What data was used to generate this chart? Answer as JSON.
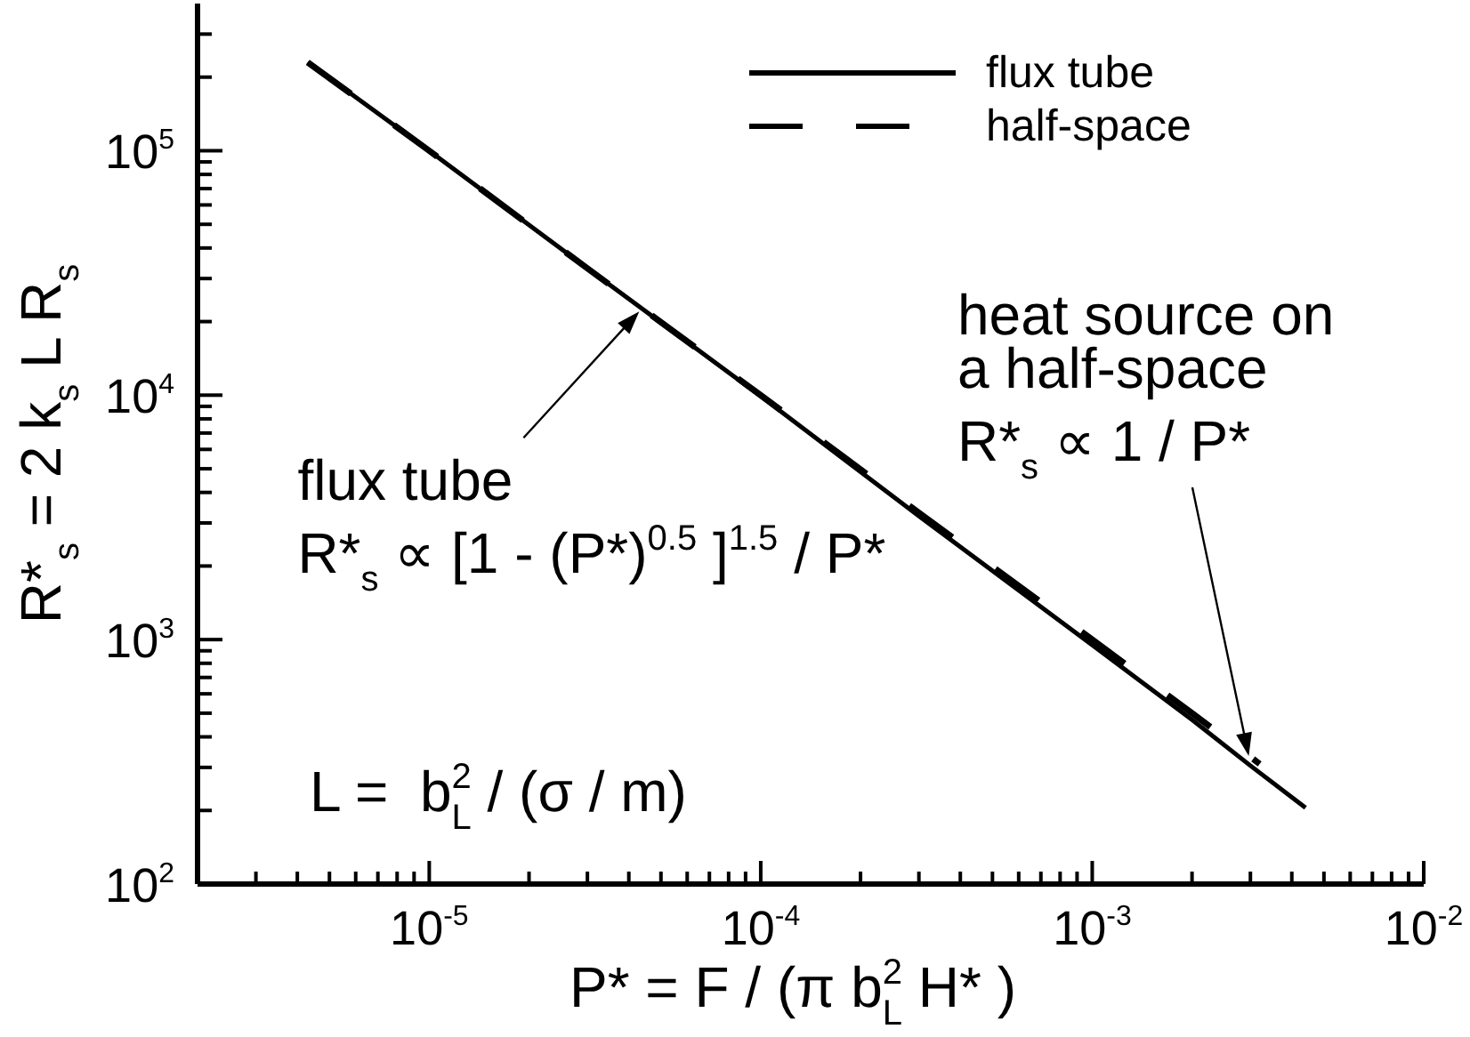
{
  "chart_data": {
    "type": "line",
    "xlabel": "P* = F / (π b$^{2}$$_{L}$ H* )",
    "ylabel": "R*$_{s}$ = 2 k$_{s}$ L R$_{s}$",
    "log": "xy",
    "xlim": [
      2e-06,
      0.01
    ],
    "ylim": [
      100,
      400000
    ],
    "xticks": [
      {
        "value": 3e-06,
        "label": null
      },
      {
        "value": 4e-06,
        "label": null
      },
      {
        "value": 5e-06,
        "label": null
      },
      {
        "value": 6e-06,
        "label": null
      },
      {
        "value": 7e-06,
        "label": null
      },
      {
        "value": 8e-06,
        "label": null
      },
      {
        "value": 9e-06,
        "label": null
      },
      {
        "value": 1e-05,
        "label": "10$^{-5}$"
      },
      {
        "value": 2e-05,
        "label": null
      },
      {
        "value": 3e-05,
        "label": null
      },
      {
        "value": 4e-05,
        "label": null
      },
      {
        "value": 5e-05,
        "label": null
      },
      {
        "value": 6e-05,
        "label": null
      },
      {
        "value": 7e-05,
        "label": null
      },
      {
        "value": 8e-05,
        "label": null
      },
      {
        "value": 9e-05,
        "label": null
      },
      {
        "value": 0.0001,
        "label": "10$^{-4}$"
      },
      {
        "value": 0.0002,
        "label": null
      },
      {
        "value": 0.0003,
        "label": null
      },
      {
        "value": 0.0004,
        "label": null
      },
      {
        "value": 0.0005,
        "label": null
      },
      {
        "value": 0.0006,
        "label": null
      },
      {
        "value": 0.0007,
        "label": null
      },
      {
        "value": 0.0008,
        "label": null
      },
      {
        "value": 0.0009,
        "label": null
      },
      {
        "value": 0.001,
        "label": "10$^{-3}$"
      },
      {
        "value": 0.002,
        "label": null
      },
      {
        "value": 0.003,
        "label": null
      },
      {
        "value": 0.004,
        "label": null
      },
      {
        "value": 0.005,
        "label": null
      },
      {
        "value": 0.006,
        "label": null
      },
      {
        "value": 0.007,
        "label": null
      },
      {
        "value": 0.008,
        "label": null
      },
      {
        "value": 0.009,
        "label": null
      },
      {
        "value": 0.01,
        "label": "10$^{-2}$"
      }
    ],
    "yticks": [
      {
        "value": 100,
        "label": "10$^{2}$"
      },
      {
        "value": 200,
        "label": null
      },
      {
        "value": 300,
        "label": null
      },
      {
        "value": 400,
        "label": null
      },
      {
        "value": 500,
        "label": null
      },
      {
        "value": 600,
        "label": null
      },
      {
        "value": 700,
        "label": null
      },
      {
        "value": 800,
        "label": null
      },
      {
        "value": 900,
        "label": null
      },
      {
        "value": 1000,
        "label": "10$^{3}$"
      },
      {
        "value": 2000,
        "label": null
      },
      {
        "value": 3000,
        "label": null
      },
      {
        "value": 4000,
        "label": null
      },
      {
        "value": 5000,
        "label": null
      },
      {
        "value": 6000,
        "label": null
      },
      {
        "value": 7000,
        "label": null
      },
      {
        "value": 8000,
        "label": null
      },
      {
        "value": 9000,
        "label": null
      },
      {
        "value": 10000,
        "label": "10$^{4}$"
      },
      {
        "value": 20000,
        "label": null
      },
      {
        "value": 30000,
        "label": null
      },
      {
        "value": 40000,
        "label": null
      },
      {
        "value": 50000,
        "label": null
      },
      {
        "value": 60000,
        "label": null
      },
      {
        "value": 70000,
        "label": null
      },
      {
        "value": 80000,
        "label": null
      },
      {
        "value": 90000,
        "label": null
      },
      {
        "value": 100000,
        "label": "10$^{5}$"
      },
      {
        "value": 200000,
        "label": null
      },
      {
        "value": 300000,
        "label": null
      }
    ],
    "legend": "top right",
    "series": [
      {
        "name": "flux tube",
        "color": "#000000",
        "line_style": "solid",
        "x": [
          4.3e-06,
          1e-05,
          3e-05,
          0.0001,
          0.0003,
          0.001,
          0.002,
          0.003,
          0.0044
        ],
        "values": [
          230000,
          100000,
          33000,
          9900,
          3200,
          950,
          470,
          305,
          205
        ]
      },
      {
        "name": "half-space",
        "color": "#000000",
        "line_style": "dashed",
        "x": [
          4.3e-06,
          1e-05,
          3e-05,
          0.0001,
          0.0003,
          0.001,
          0.002,
          0.0032
        ],
        "values": [
          230000,
          100000,
          33000,
          10000,
          3300,
          1000,
          500,
          310
        ]
      }
    ],
    "annotations": [
      {
        "text": "flux tube\nR*$_{s}$ ∝ [1 - (P*)$^{0.5}$ ]$^{1.5}$ / P*",
        "x": 4.3e-05,
        "y": 22000
      },
      "heat source on\na half-space\nR*$_{s}$ ∝ 1 / P*",
      "L =  b$^{2}$$_{L}$ / (σ / m)"
    ]
  }
}
